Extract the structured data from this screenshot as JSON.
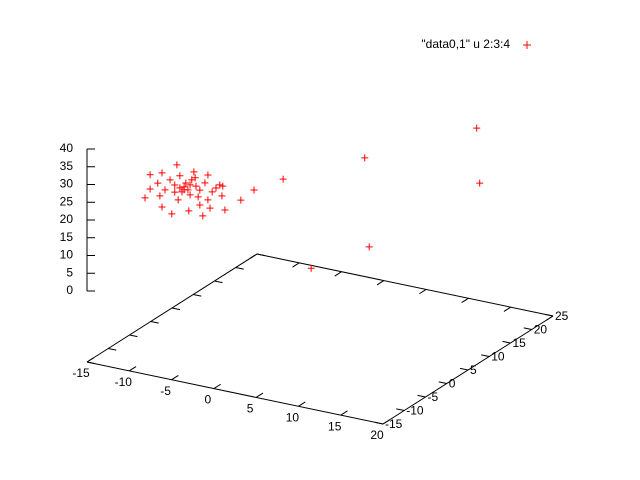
{
  "chart_data": {
    "type": "scatter3d",
    "xlim": [
      -15,
      20
    ],
    "ylim": [
      -15,
      25
    ],
    "zlim": [
      0,
      40
    ],
    "xticks": [
      -15,
      -10,
      -5,
      0,
      5,
      10,
      15,
      20
    ],
    "yticks": [
      -15,
      -10,
      -5,
      0,
      5,
      10,
      15,
      20,
      25
    ],
    "zticks": [
      0,
      5,
      10,
      15,
      20,
      25,
      30,
      35,
      40
    ],
    "ticslevel": 0.5,
    "legend": "top-right",
    "series": [
      {
        "name": "\"data0,1\" u 2:3:4",
        "color": "#ff0000",
        "marker": "plus",
        "x": [
          10,
          15,
          0,
          15,
          15,
          0,
          -5,
          -5,
          -10,
          -10,
          -10,
          -10,
          -10,
          -10,
          -10,
          -10,
          -10,
          -10,
          -10,
          -10,
          -10,
          -10,
          -10,
          -10,
          -10,
          -10,
          -10,
          -10,
          -10,
          -10,
          -10,
          -10,
          -10,
          -10,
          -10,
          -10,
          -10,
          -10,
          -10,
          -10,
          -10,
          -10,
          -10,
          -10,
          -10,
          -10,
          -10,
          -10,
          -10,
          -10
        ],
        "y": [
          -12,
          -8.3,
          20.5,
          17,
          17.7,
          1.3,
          4.4,
          1.3,
          -11.3,
          -10.1,
          -10.1,
          -8.3,
          -7.3,
          -7.3,
          -7.8,
          -6.6,
          -5.4,
          -5.0,
          -4.3,
          -3.8,
          -3.5,
          -3.1,
          -2.6,
          -2.1,
          -1.7,
          -1.2,
          -0.7,
          -1.0,
          -0.3,
          0.2,
          0.7,
          1.2,
          1.6,
          2.3,
          2.8,
          3.5,
          3.5,
          4.0,
          4.5,
          5.4,
          6.3,
          6.8,
          7.5,
          7.0,
          -3.1,
          -2.1,
          -0.7,
          -4.3,
          0.5,
          1.6
        ],
        "z": [
          16.6,
          22.3,
          18,
          36.5,
          20.5,
          26.6,
          18.7,
          18.2,
          25.9,
          31.5,
          27.5,
          27.8,
          29.9,
          20.3,
          23.8,
          24.6,
          26.5,
          16.6,
          24.2,
          29.5,
          19.4,
          25.9,
          21.0,
          22.0,
          22.8,
          20.5,
          18.7,
          14.4,
          22.6,
          24.5,
          20.1,
          16.7,
          18.3,
          10.5,
          19.4,
          21.1,
          14.1,
          11.4,
          15.6,
          16.0,
          16.2,
          12.7,
          8.2,
          15.3,
          22.5,
          21.2,
          21.5,
          22.2,
          22.6,
          14.1
        ]
      }
    ]
  }
}
